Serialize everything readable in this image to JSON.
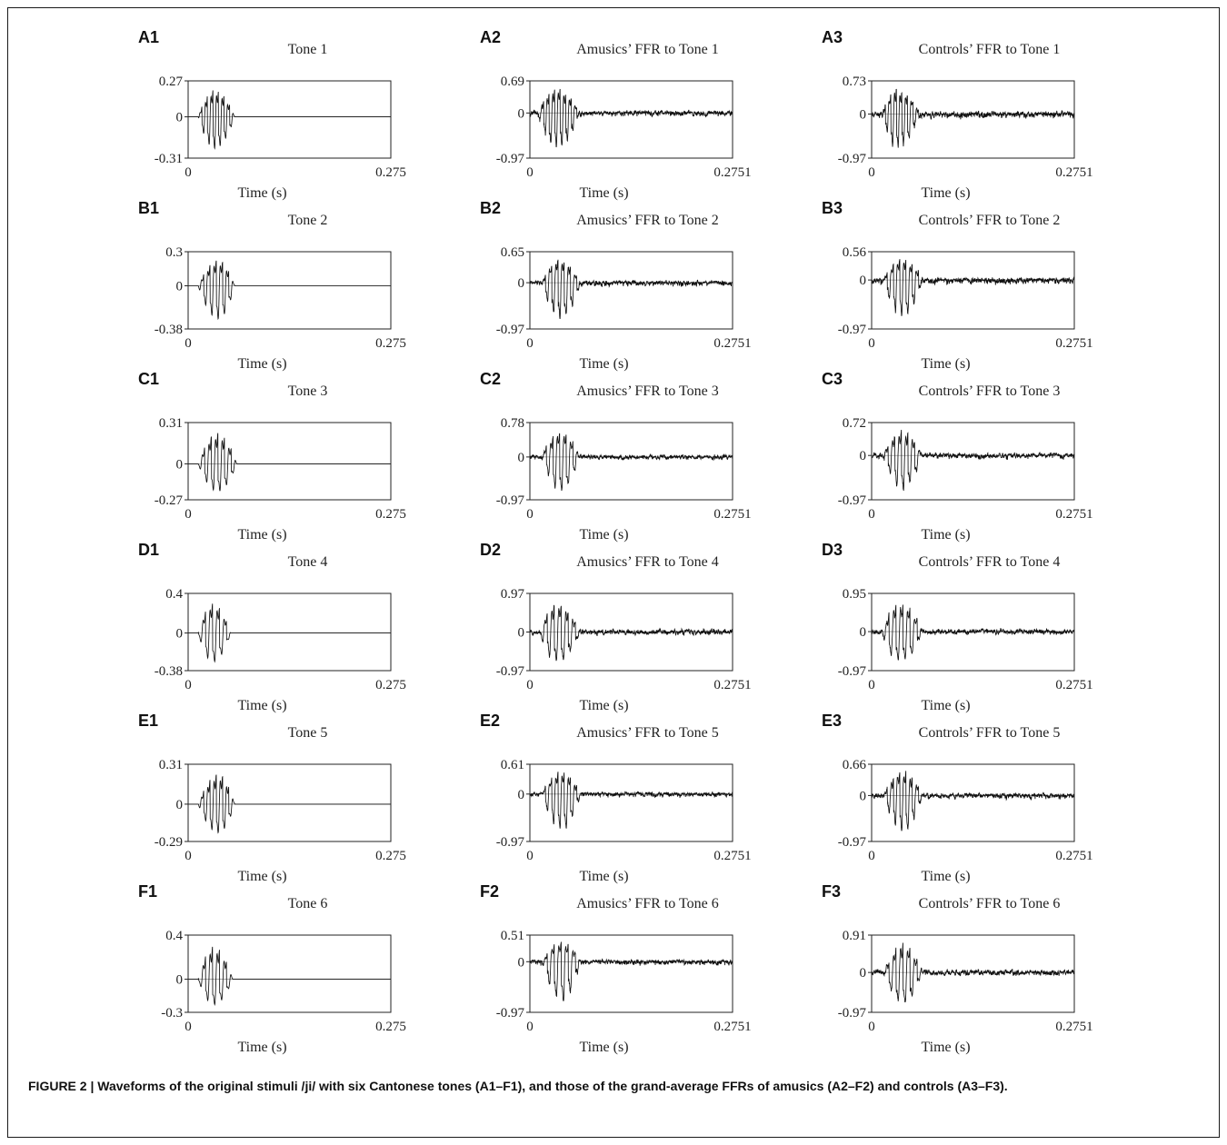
{
  "caption": "FIGURE 2 | Waveforms of the original stimuli /ji/ with six Cantonese tones (A1–F1), and those of the grand-average FFRs of amusics (A2–F2) and controls (A3–F3).",
  "colors": {
    "waveform": "#111111",
    "zero_line": "#999999",
    "axis": "#222222"
  },
  "chart_data": [
    {
      "type": "line",
      "panel": "A1",
      "title": "Tone 1",
      "xlabel": "Time (s)",
      "xlim": [
        0,
        0.275
      ],
      "ylim": [
        -0.31,
        0.27
      ],
      "x_ticks": [
        "0",
        "0.275"
      ],
      "y_ticks": [
        "0.27",
        "0",
        "-0.31"
      ],
      "waveform": {
        "onset": 0.05,
        "offset": 0.23,
        "peak": 0.45,
        "period": 0.0075,
        "noise": 0,
        "pos_peak": 0.27,
        "neg_peak": -0.31
      }
    },
    {
      "type": "line",
      "panel": "A2",
      "title": "Amusics’ FFR to Tone 1",
      "xlabel": "Time (s)",
      "xlim": [
        0,
        0.2751
      ],
      "ylim": [
        -0.97,
        0.69
      ],
      "x_ticks": [
        "0",
        "0.2751"
      ],
      "y_ticks": [
        "0.69",
        "0",
        "-0.97"
      ],
      "waveform": {
        "onset": 0.04,
        "offset": 0.245,
        "peak": 0.45,
        "period": 0.0075,
        "noise": 0.12,
        "pos_peak": 0.69,
        "neg_peak": -0.97
      }
    },
    {
      "type": "line",
      "panel": "A3",
      "title": "Controls’ FFR to Tone 1",
      "xlabel": "Time (s)",
      "xlim": [
        0,
        0.2751
      ],
      "ylim": [
        -0.97,
        0.73
      ],
      "x_ticks": [
        "0",
        "0.2751"
      ],
      "y_ticks": [
        "0.73",
        "0",
        "-0.97"
      ],
      "waveform": {
        "onset": 0.05,
        "offset": 0.24,
        "peak": 0.4,
        "period": 0.0075,
        "noise": 0.14,
        "pos_peak": 0.73,
        "neg_peak": -0.97
      }
    },
    {
      "type": "line",
      "panel": "B1",
      "title": "Tone 2",
      "xlabel": "Time (s)",
      "xlim": [
        0,
        0.275
      ],
      "ylim": [
        -0.38,
        0.3
      ],
      "x_ticks": [
        "0",
        "0.275"
      ],
      "y_ticks": [
        "0.3",
        "0",
        "-0.38"
      ],
      "waveform": {
        "onset": 0.05,
        "offset": 0.23,
        "peak": 0.55,
        "period": 0.0085,
        "noise": 0,
        "pos_peak": 0.3,
        "neg_peak": -0.38
      }
    },
    {
      "type": "line",
      "panel": "B2",
      "title": "Amusics’ FFR to Tone 2",
      "xlabel": "Time (s)",
      "xlim": [
        0,
        0.2751
      ],
      "ylim": [
        -0.97,
        0.65
      ],
      "x_ticks": [
        "0",
        "0.2751"
      ],
      "y_ticks": [
        "0.65",
        "0",
        "-0.97"
      ],
      "waveform": {
        "onset": 0.06,
        "offset": 0.25,
        "peak": 0.45,
        "period": 0.0085,
        "noise": 0.12,
        "pos_peak": 0.65,
        "neg_peak": -0.97
      }
    },
    {
      "type": "line",
      "panel": "B3",
      "title": "Controls’ FFR to Tone 2",
      "xlabel": "Time (s)",
      "xlim": [
        0,
        0.2751
      ],
      "ylim": [
        -0.97,
        0.56
      ],
      "x_ticks": [
        "0",
        "0.2751"
      ],
      "y_ticks": [
        "0.56",
        "0",
        "-0.97"
      ],
      "waveform": {
        "onset": 0.06,
        "offset": 0.25,
        "peak": 0.5,
        "period": 0.0085,
        "noise": 0.14,
        "pos_peak": 0.56,
        "neg_peak": -0.97
      }
    },
    {
      "type": "line",
      "panel": "C1",
      "title": "Tone 3",
      "xlabel": "Time (s)",
      "xlim": [
        0,
        0.275
      ],
      "ylim": [
        -0.27,
        0.31
      ],
      "x_ticks": [
        "0",
        "0.275"
      ],
      "y_ticks": [
        "0.31",
        "0",
        "-0.27"
      ],
      "waveform": {
        "onset": 0.05,
        "offset": 0.24,
        "peak": 0.5,
        "period": 0.009,
        "noise": 0,
        "pos_peak": 0.31,
        "neg_peak": -0.27
      }
    },
    {
      "type": "line",
      "panel": "C2",
      "title": "Amusics’ FFR to Tone 3",
      "xlabel": "Time (s)",
      "xlim": [
        0,
        0.2751
      ],
      "ylim": [
        -0.97,
        0.78
      ],
      "x_ticks": [
        "0",
        "0.2751"
      ],
      "y_ticks": [
        "0.78",
        "0",
        "-0.97"
      ],
      "waveform": {
        "onset": 0.06,
        "offset": 0.245,
        "peak": 0.5,
        "period": 0.009,
        "noise": 0.1,
        "pos_peak": 0.78,
        "neg_peak": -0.97
      }
    },
    {
      "type": "line",
      "panel": "C3",
      "title": "Controls’ FFR to Tone 3",
      "xlabel": "Time (s)",
      "xlim": [
        0,
        0.2751
      ],
      "ylim": [
        -0.97,
        0.72
      ],
      "x_ticks": [
        "0",
        "0.2751"
      ],
      "y_ticks": [
        "0.72",
        "0",
        "-0.97"
      ],
      "waveform": {
        "onset": 0.06,
        "offset": 0.245,
        "peak": 0.5,
        "period": 0.009,
        "noise": 0.12,
        "pos_peak": 0.72,
        "neg_peak": -0.97
      }
    },
    {
      "type": "line",
      "panel": "D1",
      "title": "Tone 4",
      "xlabel": "Time (s)",
      "xlim": [
        0,
        0.275
      ],
      "ylim": [
        -0.38,
        0.4
      ],
      "x_ticks": [
        "0",
        "0.275"
      ],
      "y_ticks": [
        "0.4",
        "0",
        "-0.38"
      ],
      "waveform": {
        "onset": 0.05,
        "offset": 0.21,
        "peak": 0.45,
        "period": 0.0095,
        "noise": 0,
        "pos_peak": 0.4,
        "neg_peak": -0.38
      }
    },
    {
      "type": "line",
      "panel": "D2",
      "title": "Amusics’ FFR to Tone 4",
      "xlabel": "Time (s)",
      "xlim": [
        0,
        0.2751
      ],
      "ylim": [
        -0.97,
        0.97
      ],
      "x_ticks": [
        "0",
        "0.2751"
      ],
      "y_ticks": [
        "0.97",
        "0",
        "-0.97"
      ],
      "waveform": {
        "onset": 0.05,
        "offset": 0.25,
        "peak": 0.4,
        "period": 0.0095,
        "noise": 0.12,
        "pos_peak": 0.97,
        "neg_peak": -0.97
      }
    },
    {
      "type": "line",
      "panel": "D3",
      "title": "Controls’ FFR to Tone 4",
      "xlabel": "Time (s)",
      "xlim": [
        0,
        0.2751
      ],
      "ylim": [
        -0.97,
        0.95
      ],
      "x_ticks": [
        "0",
        "0.2751"
      ],
      "y_ticks": [
        "0.95",
        "0",
        "-0.97"
      ],
      "waveform": {
        "onset": 0.05,
        "offset": 0.25,
        "peak": 0.45,
        "period": 0.0095,
        "noise": 0.12,
        "pos_peak": 0.95,
        "neg_peak": -0.97
      }
    },
    {
      "type": "line",
      "panel": "E1",
      "title": "Tone 5",
      "xlabel": "Time (s)",
      "xlim": [
        0,
        0.275
      ],
      "ylim": [
        -0.29,
        0.31
      ],
      "x_ticks": [
        "0",
        "0.275"
      ],
      "y_ticks": [
        "0.31",
        "0",
        "-0.29"
      ],
      "waveform": {
        "onset": 0.05,
        "offset": 0.23,
        "peak": 0.55,
        "period": 0.0085,
        "noise": 0,
        "pos_peak": 0.31,
        "neg_peak": -0.29
      }
    },
    {
      "type": "line",
      "panel": "E2",
      "title": "Amusics’ FFR to Tone 5",
      "xlabel": "Time (s)",
      "xlim": [
        0,
        0.2751
      ],
      "ylim": [
        -0.97,
        0.61
      ],
      "x_ticks": [
        "0",
        "0.2751"
      ],
      "y_ticks": [
        "0.61",
        "0",
        "-0.97"
      ],
      "waveform": {
        "onset": 0.06,
        "offset": 0.25,
        "peak": 0.5,
        "period": 0.0085,
        "noise": 0.1,
        "pos_peak": 0.61,
        "neg_peak": -0.97
      }
    },
    {
      "type": "line",
      "panel": "E3",
      "title": "Controls’ FFR to Tone 5",
      "xlabel": "Time (s)",
      "xlim": [
        0,
        0.2751
      ],
      "ylim": [
        -0.97,
        0.66
      ],
      "x_ticks": [
        "0",
        "0.2751"
      ],
      "y_ticks": [
        "0.66",
        "0",
        "-0.97"
      ],
      "waveform": {
        "onset": 0.06,
        "offset": 0.25,
        "peak": 0.5,
        "period": 0.0085,
        "noise": 0.12,
        "pos_peak": 0.66,
        "neg_peak": -0.97
      }
    },
    {
      "type": "line",
      "panel": "F1",
      "title": "Tone 6",
      "xlabel": "Time (s)",
      "xlim": [
        0,
        0.275
      ],
      "ylim": [
        -0.3,
        0.4
      ],
      "x_ticks": [
        "0",
        "0.275"
      ],
      "y_ticks": [
        "0.4",
        "0",
        "-0.3"
      ],
      "waveform": {
        "onset": 0.05,
        "offset": 0.22,
        "peak": 0.45,
        "period": 0.0095,
        "noise": 0,
        "pos_peak": 0.4,
        "neg_peak": -0.3
      }
    },
    {
      "type": "line",
      "panel": "F2",
      "title": "Amusics’ FFR to Tone 6",
      "xlabel": "Time (s)",
      "xlim": [
        0,
        0.2751
      ],
      "ylim": [
        -0.97,
        0.51
      ],
      "x_ticks": [
        "0",
        "0.2751"
      ],
      "y_ticks": [
        "0.51",
        "0",
        "-0.97"
      ],
      "waveform": {
        "onset": 0.06,
        "offset": 0.25,
        "peak": 0.5,
        "period": 0.0095,
        "noise": 0.12,
        "pos_peak": 0.51,
        "neg_peak": -0.97
      }
    },
    {
      "type": "line",
      "panel": "F3",
      "title": "Controls’ FFR to Tone 6",
      "xlabel": "Time (s)",
      "xlim": [
        0,
        0.2751
      ],
      "ylim": [
        -0.97,
        0.91
      ],
      "x_ticks": [
        "0",
        "0.2751"
      ],
      "y_ticks": [
        "0.91",
        "0",
        "-0.97"
      ],
      "waveform": {
        "onset": 0.06,
        "offset": 0.25,
        "peak": 0.5,
        "period": 0.0095,
        "noise": 0.12,
        "pos_peak": 0.91,
        "neg_peak": -0.97
      }
    }
  ]
}
